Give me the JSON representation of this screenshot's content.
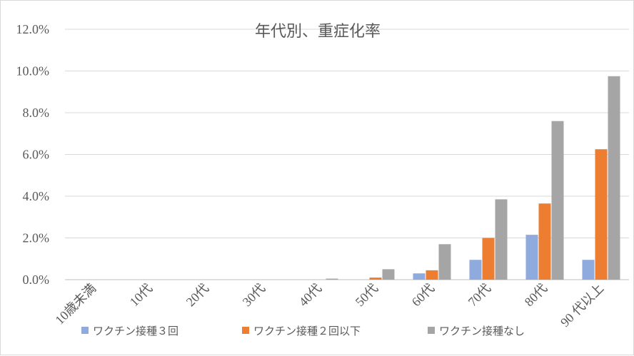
{
  "chart_data": {
    "type": "bar",
    "title": "年代別、重症化率",
    "xlabel": "",
    "ylabel": "",
    "categories": [
      "10歳未満",
      "10代",
      "20代",
      "30代",
      "40代",
      "50代",
      "60代",
      "70代",
      "80代",
      "90 代以上"
    ],
    "y_ticks": [
      "0.0%",
      "2.0%",
      "4.0%",
      "6.0%",
      "8.0%",
      "10.0%",
      "12.0%"
    ],
    "ylim": [
      0,
      12
    ],
    "y_unit": "%",
    "grid": true,
    "legend_position": "bottom",
    "series": [
      {
        "name": "ワクチン接種３回",
        "color": "#8faadc",
        "values": [
          0,
          0,
          0,
          0,
          0,
          0,
          0.3,
          0.95,
          2.15,
          0.95
        ]
      },
      {
        "name": "ワクチン接種２回以下",
        "color": "#ed7d31",
        "values": [
          0,
          0,
          0,
          0,
          0,
          0.1,
          0.45,
          2.0,
          3.65,
          6.25
        ]
      },
      {
        "name": "ワクチン接種なし",
        "color": "#a5a5a5",
        "values": [
          0,
          0,
          0,
          0,
          0.05,
          0.5,
          1.7,
          3.85,
          7.6,
          9.75
        ]
      }
    ]
  }
}
